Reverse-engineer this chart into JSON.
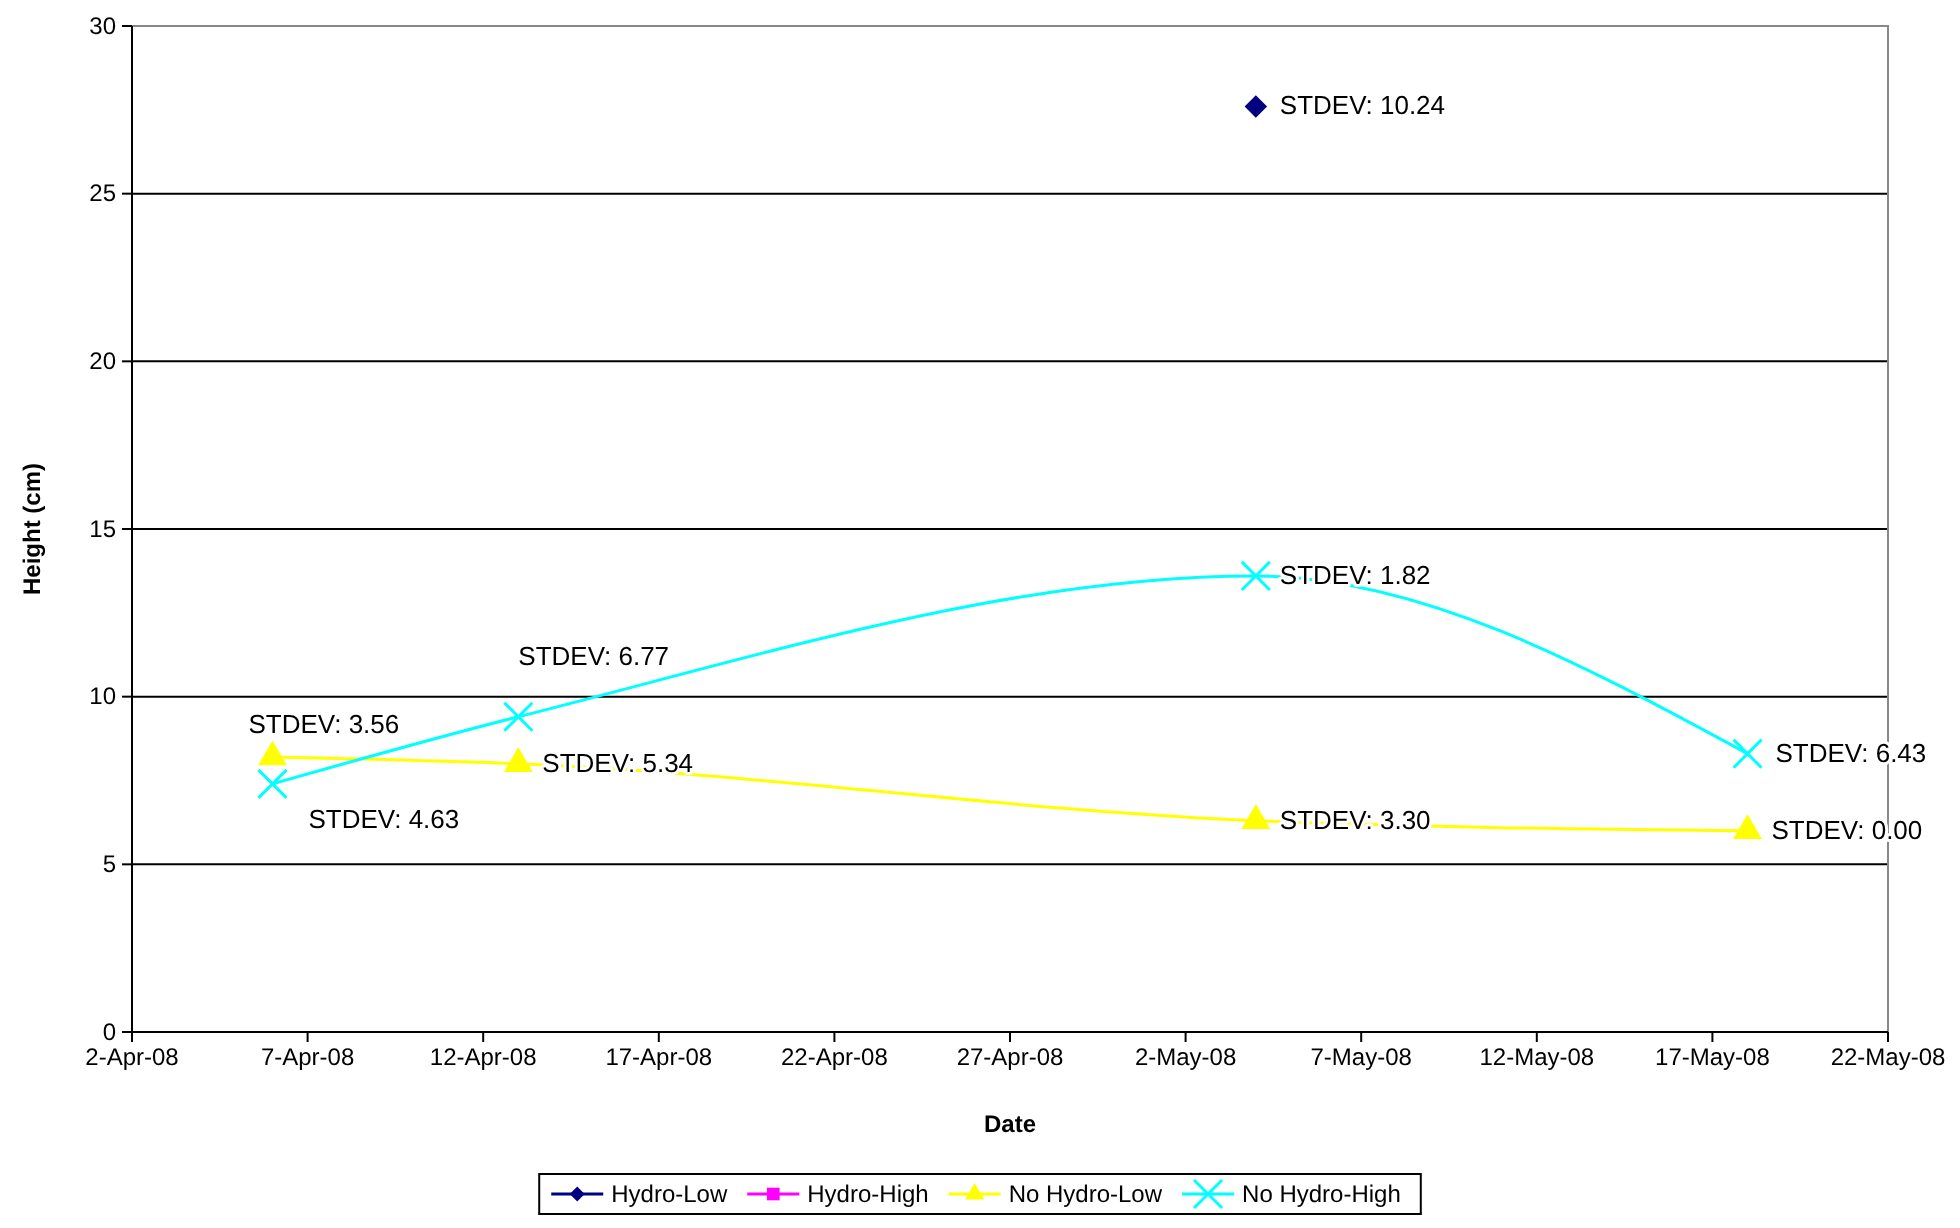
{
  "chart_data": {
    "type": "line",
    "xlabel": "Date",
    "ylabel": "Height (cm)",
    "x": [
      "--04-06",
      "--04-13",
      "--05-04",
      "--05-18"
    ],
    "series": [
      {
        "name": "Hydro-Low",
        "color": "#000080",
        "marker": "diamond",
        "values": [
          null,
          null,
          27.6,
          null
        ]
      },
      {
        "name": "Hydro-High",
        "color": "#ff00ff",
        "marker": "square",
        "values": [
          null,
          null,
          null,
          null
        ]
      },
      {
        "name": "No Hydro-Low",
        "color": "#ffff00",
        "marker": "triangle",
        "values": [
          8.2,
          8.0,
          6.3,
          6.0
        ]
      },
      {
        "name": "No Hydro-High",
        "color": "#00ffff",
        "marker": "cross",
        "values": [
          7.4,
          9.4,
          13.6,
          8.3
        ]
      }
    ],
    "xlim": [
      "--04-02",
      "--05-22"
    ],
    "xticks": [
      {
        "value": "--04-02",
        "label": "2-Apr-08"
      },
      {
        "value": "--04-07",
        "label": "7-Apr-08"
      },
      {
        "value": "--04-12",
        "label": "12-Apr-08"
      },
      {
        "value": "--04-17",
        "label": "17-Apr-08"
      },
      {
        "value": "--04-22",
        "label": "22-Apr-08"
      },
      {
        "value": "--04-27",
        "label": "27-Apr-08"
      },
      {
        "value": "--05-02",
        "label": "2-May-08"
      },
      {
        "value": "--05-07",
        "label": "7-May-08"
      },
      {
        "value": "--05-12",
        "label": "12-May-08"
      },
      {
        "value": "--05-17",
        "label": "17-May-08"
      },
      {
        "value": "--05-22",
        "label": "22-May-08"
      }
    ],
    "ylim": [
      0,
      30
    ],
    "yticks": [
      0,
      5,
      10,
      15,
      20,
      25,
      30
    ],
    "grid": "y",
    "legend": "bottom",
    "annotations": [
      {
        "text": "STDEV: 10.24",
        "x": "--05-04",
        "y": 27.6
      },
      {
        "text": "STDEV: 3.56",
        "x": "--04-06",
        "y": 8.2
      },
      {
        "text": "STDEV: 4.63",
        "x": "--04-06",
        "y": 7.4
      },
      {
        "text": "STDEV: 6.77",
        "x": "--04-13",
        "y": 9.4
      },
      {
        "text": "STDEV: 5.34",
        "x": "--04-13",
        "y": 8.0
      },
      {
        "text": "STDEV: 1.82",
        "x": "--05-04",
        "y": 13.6
      },
      {
        "text": "STDEV: 3.30",
        "x": "--05-04",
        "y": 6.3
      },
      {
        "text": "STDEV: 6.43",
        "x": "--05-18",
        "y": 8.3
      },
      {
        "text": "STDEV: 0.00",
        "x": "--05-18",
        "y": 6.0
      }
    ]
  }
}
